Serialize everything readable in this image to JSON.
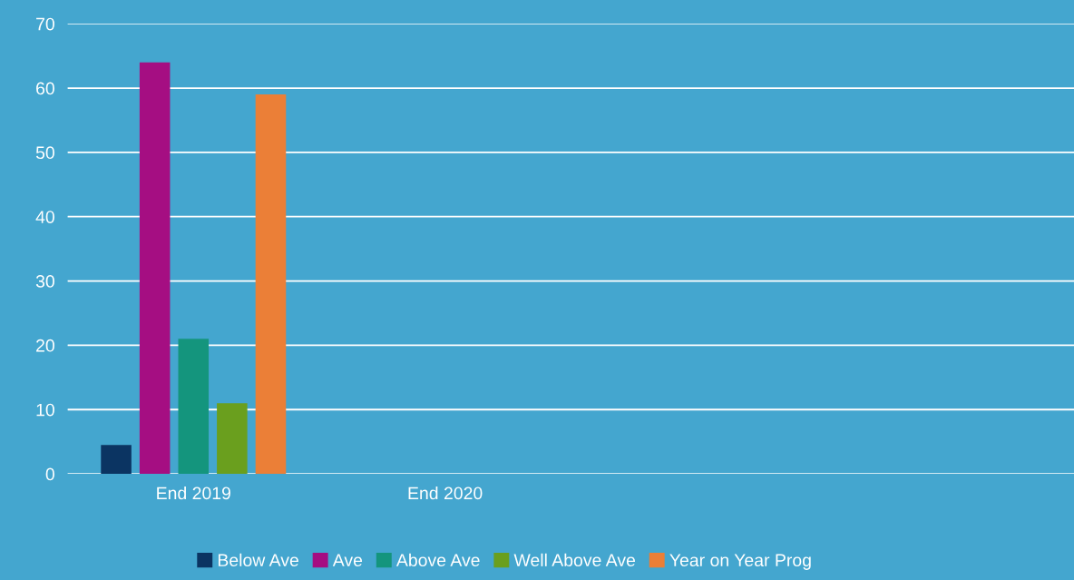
{
  "chart_data": {
    "type": "bar",
    "categories": [
      "End 2019",
      "End 2020",
      null,
      null
    ],
    "series": [
      {
        "name": "Below Ave",
        "color": "#0b3462",
        "values": [
          4.5,
          null,
          null,
          null
        ]
      },
      {
        "name": "Ave",
        "color": "#a50e82",
        "values": [
          64,
          null,
          null,
          null
        ]
      },
      {
        "name": "Above Ave",
        "color": "#14957d",
        "values": [
          21,
          null,
          null,
          null
        ]
      },
      {
        "name": "Well Above Ave",
        "color": "#6a9f1e",
        "values": [
          11,
          null,
          null,
          null
        ]
      },
      {
        "name": "Year on Year Prog",
        "color": "#eb7f37",
        "values": [
          59,
          null,
          null,
          null
        ]
      }
    ],
    "ylim": [
      0,
      70
    ],
    "yticks": [
      0,
      10,
      20,
      30,
      40,
      50,
      60,
      70
    ],
    "grid": "y",
    "legend": "bottom"
  }
}
